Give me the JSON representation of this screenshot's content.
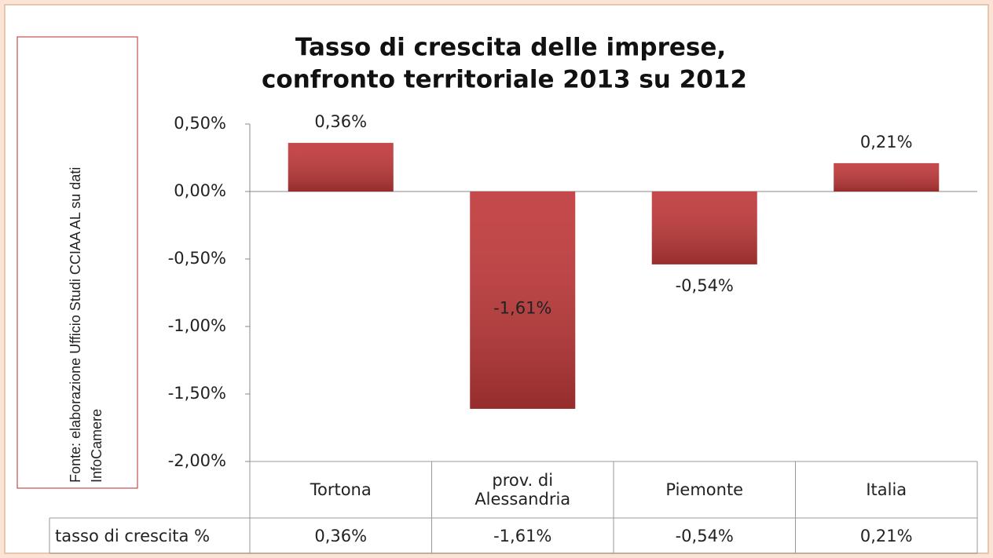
{
  "chart_data": {
    "type": "bar",
    "title": [
      "Tasso di crescita delle imprese,",
      "confronto territoriale 2013 su 2012"
    ],
    "source": [
      "Fonte: elaborazione Ufficio Studi CCIAA AL su dati",
      "InfoCamere"
    ],
    "categories": [
      "Tortona",
      "prov. di Alessandria",
      "Piemonte",
      "Italia"
    ],
    "values": [
      0.36,
      -1.61,
      -0.54,
      0.21
    ],
    "value_labels": [
      "0,36%",
      "-1,61%",
      "-0,54%",
      "0,21%"
    ],
    "table_row_label": "tasso di crescita %",
    "color": "#c0393a",
    "ylim": [
      -2,
      0.5
    ],
    "yticks": [
      {
        "value": 0.5,
        "label": "0,50%"
      },
      {
        "value": 0,
        "label": "0,00%"
      },
      {
        "value": -0.5,
        "label": "-0,50%"
      },
      {
        "value": -1,
        "label": "-1,00%"
      },
      {
        "value": -1.5,
        "label": "-1,50%"
      },
      {
        "value": -2,
        "label": "-2,00%"
      }
    ]
  }
}
